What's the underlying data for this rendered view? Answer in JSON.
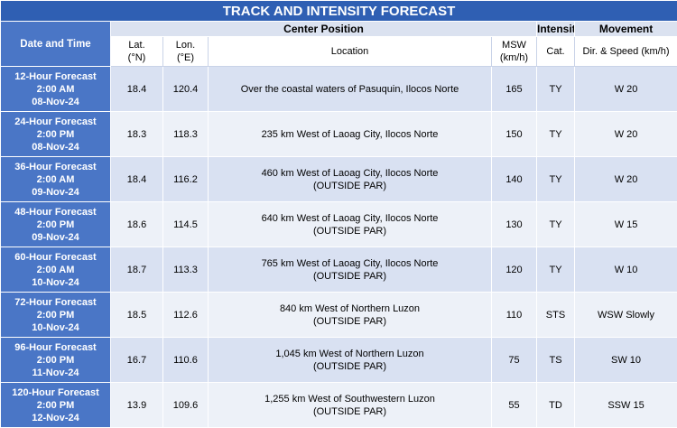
{
  "title": "TRACK AND INTENSITY FORECAST",
  "headers": {
    "date_time": "Date and Time",
    "center_position": "Center Position",
    "intensity": "Intensity",
    "movement": "Movement",
    "lat": [
      "Lat.",
      "(°N)"
    ],
    "lon": [
      "Lon.",
      "(°E)"
    ],
    "location": "Location",
    "msw": [
      "MSW",
      "(km/h)"
    ],
    "cat": "Cat.",
    "dir_speed": "Dir. & Speed (km/h)"
  },
  "rows": [
    {
      "dt": [
        "12-Hour Forecast",
        "2:00 AM",
        "08-Nov-24"
      ],
      "lat": "18.4",
      "lon": "120.4",
      "loc": [
        "Over the coastal waters of Pasuquin, Ilocos Norte",
        ""
      ],
      "msw": "165",
      "cat": "TY",
      "move": "W 20"
    },
    {
      "dt": [
        "24-Hour Forecast",
        "2:00 PM",
        "08-Nov-24"
      ],
      "lat": "18.3",
      "lon": "118.3",
      "loc": [
        "235 km West of Laoag City, Ilocos Norte",
        ""
      ],
      "msw": "150",
      "cat": "TY",
      "move": "W 20"
    },
    {
      "dt": [
        "36-Hour Forecast",
        "2:00 AM",
        "09-Nov-24"
      ],
      "lat": "18.4",
      "lon": "116.2",
      "loc": [
        "460 km West of Laoag City, Ilocos Norte",
        "(OUTSIDE PAR)"
      ],
      "msw": "140",
      "cat": "TY",
      "move": "W 20"
    },
    {
      "dt": [
        "48-Hour Forecast",
        "2:00 PM",
        "09-Nov-24"
      ],
      "lat": "18.6",
      "lon": "114.5",
      "loc": [
        "640 km West of Laoag City, Ilocos Norte",
        "(OUTSIDE PAR)"
      ],
      "msw": "130",
      "cat": "TY",
      "move": "W 15"
    },
    {
      "dt": [
        "60-Hour Forecast",
        "2:00 AM",
        "10-Nov-24"
      ],
      "lat": "18.7",
      "lon": "113.3",
      "loc": [
        "765 km West of Laoag City, Ilocos Norte",
        "(OUTSIDE PAR)"
      ],
      "msw": "120",
      "cat": "TY",
      "move": "W 10"
    },
    {
      "dt": [
        "72-Hour Forecast",
        "2:00 PM",
        "10-Nov-24"
      ],
      "lat": "18.5",
      "lon": "112.6",
      "loc": [
        "840 km West of Northern Luzon",
        "(OUTSIDE PAR)"
      ],
      "msw": "110",
      "cat": "STS",
      "move": "WSW Slowly"
    },
    {
      "dt": [
        "96-Hour Forecast",
        "2:00 PM",
        "11-Nov-24"
      ],
      "lat": "16.7",
      "lon": "110.6",
      "loc": [
        "1,045 km West of Northern Luzon",
        "(OUTSIDE PAR)"
      ],
      "msw": "75",
      "cat": "TS",
      "move": "SW 10"
    },
    {
      "dt": [
        "120-Hour Forecast",
        "2:00 PM",
        "12-Nov-24"
      ],
      "lat": "13.9",
      "lon": "109.6",
      "loc": [
        "1,255 km West of Southwestern Luzon",
        "(OUTSIDE PAR)"
      ],
      "msw": "55",
      "cat": "TD",
      "move": "SSW 15"
    }
  ]
}
